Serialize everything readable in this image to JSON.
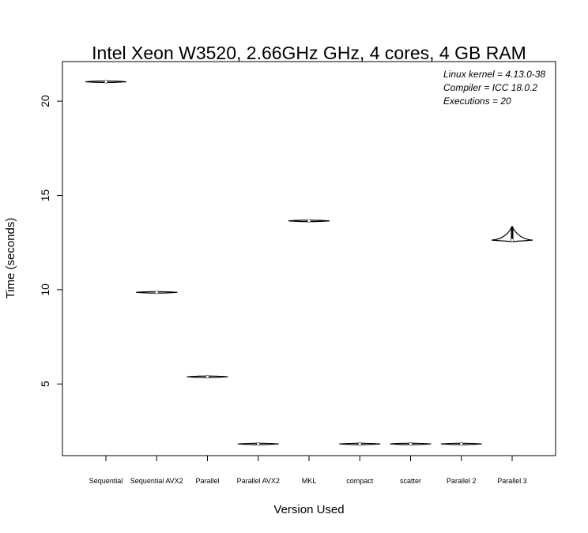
{
  "chart_data": {
    "type": "violin",
    "title": "Intel Xeon W3520, 2.66GHz GHz, 4 cores, 4 GB RAM",
    "xlabel": "Version Used",
    "ylabel": "Time (seconds)",
    "ylim": [
      1.2,
      22.1
    ],
    "yticks": [
      "5",
      "10",
      "15",
      "20"
    ],
    "grid": false,
    "annotations": [
      "Linux kernel = 4.13.0-38",
      "Compiler = ICC 18.0.2",
      "Executions = 20"
    ],
    "categories": [
      "Sequential",
      "Sequential AVX2",
      "Parallel",
      "Parallel AVX2",
      "MKL",
      "compact",
      "scatter",
      "Parallel 2",
      "Parallel 3"
    ],
    "median": [
      21.03,
      9.86,
      5.38,
      1.82,
      13.65,
      1.82,
      1.82,
      1.82,
      12.63
    ],
    "min": [
      21.0,
      9.84,
      5.35,
      1.8,
      13.63,
      1.8,
      1.8,
      1.8,
      12.55
    ],
    "max": [
      21.06,
      9.88,
      5.42,
      1.85,
      13.67,
      1.84,
      1.84,
      1.84,
      13.35
    ]
  }
}
